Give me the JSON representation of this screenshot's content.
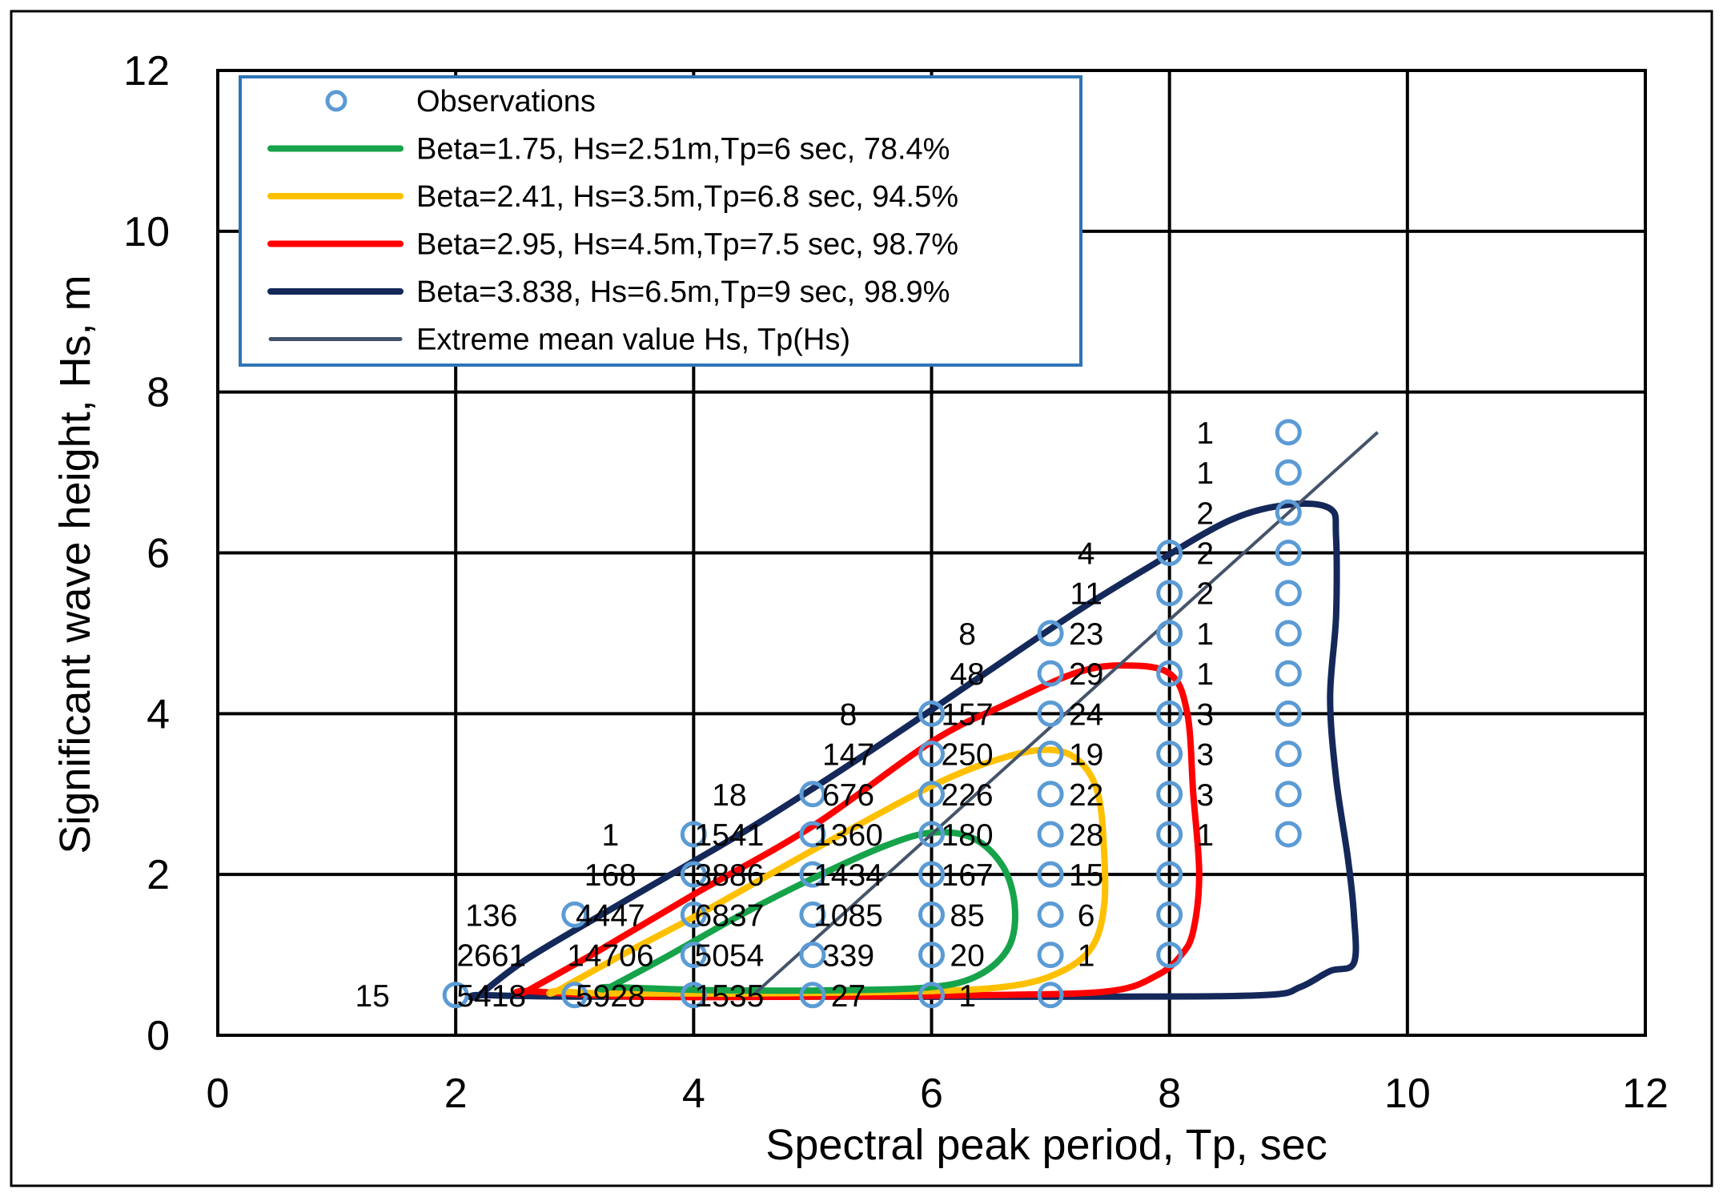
{
  "chart_data": {
    "type": "scatter",
    "xlabel": "Spectral peak period, Tp, sec",
    "ylabel": "Significant wave height, Hs, m",
    "xlim": [
      0,
      12
    ],
    "ylim": [
      0,
      12
    ],
    "x_ticks": [
      "0",
      "2",
      "4",
      "6",
      "8",
      "10",
      "12"
    ],
    "y_ticks": [
      "0",
      "2",
      "4",
      "6",
      "8",
      "10",
      "12"
    ],
    "grid": true,
    "legend_position": "top-left",
    "colors": {
      "observations": "#5B9BD5",
      "beta_1_75": "#16A34A",
      "beta_2_41": "#FFC000",
      "beta_2_95": "#FF0000",
      "beta_3_838": "#14285A",
      "extreme_mean": "#44546A"
    },
    "legend": [
      {
        "key": "observations",
        "label": "Observations"
      },
      {
        "key": "beta_1_75",
        "label": "Beta=1.75, Hs=2.51m,Tp=6 sec, 78.4%"
      },
      {
        "key": "beta_2_41",
        "label": "Beta=2.41, Hs=3.5m,Tp=6.8 sec, 94.5%"
      },
      {
        "key": "beta_2_95",
        "label": "Beta=2.95, Hs=4.5m,Tp=7.5 sec, 98.7%"
      },
      {
        "key": "beta_3_838",
        "label": "Beta=3.838, Hs=6.5m,Tp=9 sec, 98.9%"
      },
      {
        "key": "extreme_mean",
        "label": "Extreme mean value Hs, Tp(Hs)"
      }
    ],
    "observations": [
      {
        "x": 2,
        "y": 0.5
      },
      {
        "x": 3,
        "y": 0.5
      },
      {
        "x": 4,
        "y": 0.5
      },
      {
        "x": 5,
        "y": 0.5
      },
      {
        "x": 6,
        "y": 0.5
      },
      {
        "x": 7,
        "y": 0.5
      },
      {
        "x": 4,
        "y": 1.0
      },
      {
        "x": 5,
        "y": 1.0
      },
      {
        "x": 6,
        "y": 1.0
      },
      {
        "x": 7,
        "y": 1.0
      },
      {
        "x": 8,
        "y": 1.0
      },
      {
        "x": 3,
        "y": 1.5
      },
      {
        "x": 4,
        "y": 1.5
      },
      {
        "x": 5,
        "y": 1.5
      },
      {
        "x": 6,
        "y": 1.5
      },
      {
        "x": 7,
        "y": 1.5
      },
      {
        "x": 8,
        "y": 1.5
      },
      {
        "x": 4,
        "y": 2.0
      },
      {
        "x": 5,
        "y": 2.0
      },
      {
        "x": 6,
        "y": 2.0
      },
      {
        "x": 7,
        "y": 2.0
      },
      {
        "x": 8,
        "y": 2.0
      },
      {
        "x": 4,
        "y": 2.5
      },
      {
        "x": 5,
        "y": 2.5
      },
      {
        "x": 6,
        "y": 2.5
      },
      {
        "x": 7,
        "y": 2.5
      },
      {
        "x": 8,
        "y": 2.5
      },
      {
        "x": 9,
        "y": 2.5
      },
      {
        "x": 5,
        "y": 3.0
      },
      {
        "x": 6,
        "y": 3.0
      },
      {
        "x": 7,
        "y": 3.0
      },
      {
        "x": 8,
        "y": 3.0
      },
      {
        "x": 9,
        "y": 3.0
      },
      {
        "x": 6,
        "y": 3.5
      },
      {
        "x": 7,
        "y": 3.5
      },
      {
        "x": 8,
        "y": 3.5
      },
      {
        "x": 9,
        "y": 3.5
      },
      {
        "x": 6,
        "y": 4.0
      },
      {
        "x": 7,
        "y": 4.0
      },
      {
        "x": 8,
        "y": 4.0
      },
      {
        "x": 9,
        "y": 4.0
      },
      {
        "x": 7,
        "y": 4.5
      },
      {
        "x": 8,
        "y": 4.5
      },
      {
        "x": 9,
        "y": 4.5
      },
      {
        "x": 7,
        "y": 5.0
      },
      {
        "x": 8,
        "y": 5.0
      },
      {
        "x": 9,
        "y": 5.0
      },
      {
        "x": 8,
        "y": 5.5
      },
      {
        "x": 9,
        "y": 5.5
      },
      {
        "x": 8,
        "y": 6.0
      },
      {
        "x": 9,
        "y": 6.0
      },
      {
        "x": 9,
        "y": 6.5
      },
      {
        "x": 9,
        "y": 7.0
      },
      {
        "x": 9,
        "y": 7.5
      }
    ],
    "counts": [
      {
        "x": 1.3,
        "y": 0.5,
        "label": "15"
      },
      {
        "x": 2.3,
        "y": 0.5,
        "label": "5418"
      },
      {
        "x": 3.3,
        "y": 0.5,
        "label": "5928"
      },
      {
        "x": 4.3,
        "y": 0.5,
        "label": "1535"
      },
      {
        "x": 5.3,
        "y": 0.5,
        "label": "27"
      },
      {
        "x": 6.3,
        "y": 0.5,
        "label": "1"
      },
      {
        "x": 2.3,
        "y": 1.0,
        "label": "2661"
      },
      {
        "x": 3.3,
        "y": 1.0,
        "label": "14706"
      },
      {
        "x": 4.3,
        "y": 1.0,
        "label": "5054"
      },
      {
        "x": 5.3,
        "y": 1.0,
        "label": "339"
      },
      {
        "x": 6.3,
        "y": 1.0,
        "label": "20"
      },
      {
        "x": 7.3,
        "y": 1.0,
        "label": "1"
      },
      {
        "x": 2.3,
        "y": 1.5,
        "label": "136"
      },
      {
        "x": 3.3,
        "y": 1.5,
        "label": "4447"
      },
      {
        "x": 4.3,
        "y": 1.5,
        "label": "6837"
      },
      {
        "x": 5.3,
        "y": 1.5,
        "label": "1085"
      },
      {
        "x": 6.3,
        "y": 1.5,
        "label": "85"
      },
      {
        "x": 7.3,
        "y": 1.5,
        "label": "6"
      },
      {
        "x": 3.3,
        "y": 2.0,
        "label": "168"
      },
      {
        "x": 4.3,
        "y": 2.0,
        "label": "3886"
      },
      {
        "x": 5.3,
        "y": 2.0,
        "label": "1434"
      },
      {
        "x": 6.3,
        "y": 2.0,
        "label": "167"
      },
      {
        "x": 7.3,
        "y": 2.0,
        "label": "15"
      },
      {
        "x": 3.3,
        "y": 2.5,
        "label": "1"
      },
      {
        "x": 4.3,
        "y": 2.5,
        "label": "1541"
      },
      {
        "x": 5.3,
        "y": 2.5,
        "label": "1360"
      },
      {
        "x": 6.3,
        "y": 2.5,
        "label": "180"
      },
      {
        "x": 7.3,
        "y": 2.5,
        "label": "28"
      },
      {
        "x": 8.3,
        "y": 2.5,
        "label": "1"
      },
      {
        "x": 4.3,
        "y": 3.0,
        "label": "18"
      },
      {
        "x": 5.3,
        "y": 3.0,
        "label": "676"
      },
      {
        "x": 6.3,
        "y": 3.0,
        "label": "226"
      },
      {
        "x": 7.3,
        "y": 3.0,
        "label": "22"
      },
      {
        "x": 8.3,
        "y": 3.0,
        "label": "3"
      },
      {
        "x": 5.3,
        "y": 3.5,
        "label": "147"
      },
      {
        "x": 6.3,
        "y": 3.5,
        "label": "250"
      },
      {
        "x": 7.3,
        "y": 3.5,
        "label": "19"
      },
      {
        "x": 8.3,
        "y": 3.5,
        "label": "3"
      },
      {
        "x": 5.3,
        "y": 4.0,
        "label": "8"
      },
      {
        "x": 6.3,
        "y": 4.0,
        "label": "157"
      },
      {
        "x": 7.3,
        "y": 4.0,
        "label": "24"
      },
      {
        "x": 8.3,
        "y": 4.0,
        "label": "3"
      },
      {
        "x": 6.3,
        "y": 4.5,
        "label": "48"
      },
      {
        "x": 7.3,
        "y": 4.5,
        "label": "29"
      },
      {
        "x": 8.3,
        "y": 4.5,
        "label": "1"
      },
      {
        "x": 6.3,
        "y": 5.0,
        "label": "8"
      },
      {
        "x": 7.3,
        "y": 5.0,
        "label": "23"
      },
      {
        "x": 8.3,
        "y": 5.0,
        "label": "1"
      },
      {
        "x": 7.3,
        "y": 5.5,
        "label": "11"
      },
      {
        "x": 8.3,
        "y": 5.5,
        "label": "2"
      },
      {
        "x": 7.3,
        "y": 6.0,
        "label": "4"
      },
      {
        "x": 8.3,
        "y": 6.0,
        "label": "2"
      },
      {
        "x": 8.3,
        "y": 6.5,
        "label": "2"
      },
      {
        "x": 8.3,
        "y": 7.0,
        "label": "1"
      },
      {
        "x": 8.3,
        "y": 7.5,
        "label": "1"
      }
    ],
    "contours": [
      {
        "key": "beta_3_838",
        "closed": true,
        "points": [
          [
            2.2,
            0.5
          ],
          [
            2.6,
            0.95
          ],
          [
            3.4,
            1.65
          ],
          [
            4.5,
            2.6
          ],
          [
            5.5,
            3.55
          ],
          [
            6.4,
            4.45
          ],
          [
            7.2,
            5.25
          ],
          [
            7.8,
            5.8
          ],
          [
            8.5,
            6.4
          ],
          [
            9.0,
            6.6
          ],
          [
            9.35,
            6.55
          ],
          [
            9.4,
            6.2
          ],
          [
            9.4,
            5.2
          ],
          [
            9.35,
            4.2
          ],
          [
            9.4,
            3.2
          ],
          [
            9.5,
            2.2
          ],
          [
            9.55,
            1.5
          ],
          [
            9.55,
            0.9
          ],
          [
            9.35,
            0.8
          ],
          [
            9.1,
            0.6
          ],
          [
            8.8,
            0.5
          ],
          [
            7.5,
            0.48
          ],
          [
            5.0,
            0.48
          ],
          [
            3.0,
            0.48
          ],
          [
            2.2,
            0.5
          ]
        ]
      },
      {
        "key": "beta_2_95",
        "closed": true,
        "points": [
          [
            2.6,
            0.55
          ],
          [
            3.2,
            1.05
          ],
          [
            4.0,
            1.75
          ],
          [
            5.0,
            2.6
          ],
          [
            6.0,
            3.65
          ],
          [
            6.6,
            4.1
          ],
          [
            7.2,
            4.5
          ],
          [
            7.6,
            4.6
          ],
          [
            8.0,
            4.5
          ],
          [
            8.15,
            4.0
          ],
          [
            8.2,
            3.0
          ],
          [
            8.25,
            2.0
          ],
          [
            8.2,
            1.3
          ],
          [
            8.1,
            1.0
          ],
          [
            7.9,
            0.75
          ],
          [
            7.5,
            0.55
          ],
          [
            6.5,
            0.5
          ],
          [
            5.0,
            0.48
          ],
          [
            3.5,
            0.48
          ],
          [
            2.6,
            0.55
          ]
        ]
      },
      {
        "key": "beta_2_41",
        "closed": true,
        "points": [
          [
            2.85,
            0.55
          ],
          [
            3.4,
            1.0
          ],
          [
            4.1,
            1.55
          ],
          [
            5.0,
            2.3
          ],
          [
            6.0,
            3.1
          ],
          [
            6.6,
            3.45
          ],
          [
            7.0,
            3.55
          ],
          [
            7.25,
            3.4
          ],
          [
            7.4,
            3.0
          ],
          [
            7.45,
            2.3
          ],
          [
            7.45,
            1.6
          ],
          [
            7.35,
            1.1
          ],
          [
            7.1,
            0.8
          ],
          [
            6.7,
            0.62
          ],
          [
            6.0,
            0.55
          ],
          [
            4.5,
            0.52
          ],
          [
            3.3,
            0.52
          ],
          [
            2.85,
            0.55
          ]
        ]
      },
      {
        "key": "beta_1_75",
        "closed": true,
        "points": [
          [
            3.3,
            0.6
          ],
          [
            3.8,
            1.0
          ],
          [
            4.4,
            1.5
          ],
          [
            5.0,
            1.95
          ],
          [
            5.6,
            2.35
          ],
          [
            6.0,
            2.52
          ],
          [
            6.35,
            2.45
          ],
          [
            6.6,
            2.1
          ],
          [
            6.7,
            1.6
          ],
          [
            6.65,
            1.1
          ],
          [
            6.4,
            0.75
          ],
          [
            6.0,
            0.6
          ],
          [
            5.2,
            0.56
          ],
          [
            4.2,
            0.56
          ],
          [
            3.3,
            0.6
          ]
        ]
      },
      {
        "key": "extreme_mean",
        "closed": false,
        "points": [
          [
            4.5,
            0.5
          ],
          [
            9.75,
            7.5
          ]
        ]
      }
    ]
  }
}
